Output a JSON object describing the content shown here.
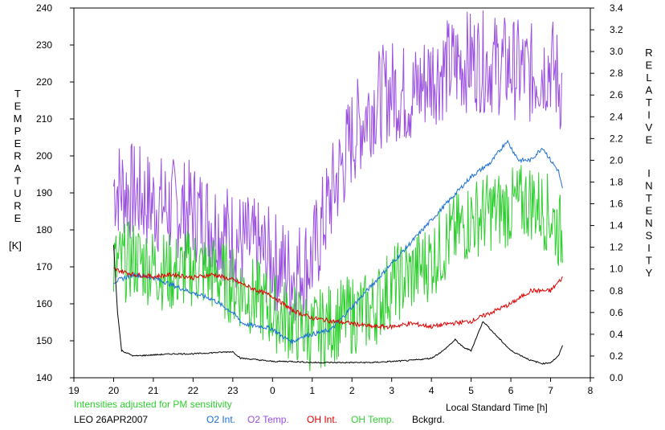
{
  "chart_data": {
    "type": "line",
    "title": "",
    "xlabel": "Local Standard Time [h]",
    "ylabel_left_letters": [
      "T",
      "E",
      "M",
      "P",
      "E",
      "R",
      "A",
      "T",
      "U",
      "R",
      "E"
    ],
    "ylabel_left_unit": "[K]",
    "ylabel_right_word1": [
      "R",
      "E",
      "L",
      "A",
      "T",
      "I",
      "V",
      "E"
    ],
    "ylabel_right_word2": [
      "I",
      "N",
      "T",
      "E",
      "N",
      "S",
      "I",
      "T",
      "Y"
    ],
    "xlim": [
      19,
      8
    ],
    "x_tick_labels": [
      "19",
      "20",
      "21",
      "22",
      "23",
      "0",
      "1",
      "2",
      "3",
      "4",
      "5",
      "6",
      "7",
      "8"
    ],
    "ylim_left": [
      140,
      240
    ],
    "y_left_ticks": [
      140,
      150,
      160,
      170,
      180,
      190,
      200,
      210,
      220,
      230,
      240
    ],
    "ylim_right": [
      0.0,
      3.4
    ],
    "y_right_ticks": [
      "0.0",
      "0.2",
      "0.4",
      "0.6",
      "0.8",
      "1.0",
      "1.2",
      "1.4",
      "1.6",
      "1.8",
      "2.0",
      "2.2",
      "2.4",
      "2.6",
      "2.8",
      "3.0",
      "3.2",
      "3.4"
    ],
    "note": "Intensities adjusted for PM sensitivity",
    "station": "LEO 26APR2007",
    "grid": false,
    "colors": {
      "O2 Int.": "#1a6fd6",
      "O2 Temp.": "#9a4fe0",
      "OH Int.": "#e00000",
      "OH Temp.": "#2fcf2f",
      "Bckgrd.": "#000000",
      "note": "#2fcf2f"
    },
    "series": [
      {
        "name": "O2 Int.",
        "axis": "right",
        "x": [
          20.0,
          20.5,
          21.0,
          21.5,
          22.0,
          22.5,
          23.0,
          23.25,
          23.5,
          23.75,
          0.0,
          0.25,
          0.5,
          0.75,
          1.0,
          1.25,
          1.5,
          1.75,
          2.0,
          2.5,
          3.0,
          3.5,
          4.0,
          4.5,
          5.0,
          5.5,
          5.9,
          6.2,
          6.5,
          6.8,
          7.0,
          7.2,
          7.3
        ],
        "values": [
          0.88,
          0.95,
          0.92,
          0.85,
          0.78,
          0.72,
          0.6,
          0.5,
          0.48,
          0.47,
          0.45,
          0.38,
          0.33,
          0.38,
          0.4,
          0.42,
          0.45,
          0.55,
          0.65,
          0.85,
          1.05,
          1.25,
          1.45,
          1.65,
          1.85,
          1.98,
          2.18,
          2.0,
          2.0,
          2.12,
          2.0,
          1.9,
          1.73
        ]
      },
      {
        "name": "O2 Temp.",
        "axis": "left",
        "x": [
          20.0,
          20.5,
          21.0,
          21.5,
          22.0,
          22.5,
          23.0,
          23.5,
          0.0,
          0.5,
          1.0,
          1.5,
          2.0,
          2.5,
          3.0,
          3.5,
          4.0,
          4.5,
          5.0,
          5.5,
          6.0,
          6.5,
          7.0,
          7.3
        ],
        "values": [
          192,
          190,
          187,
          186,
          185,
          182,
          178,
          175,
          172,
          168,
          172,
          190,
          205,
          214,
          218,
          216,
          222,
          224,
          226,
          225,
          224,
          222,
          225,
          218
        ]
      },
      {
        "name": "OH Int.",
        "axis": "right",
        "x": [
          20.0,
          20.5,
          21.0,
          21.5,
          22.0,
          22.5,
          23.0,
          23.5,
          0.0,
          0.5,
          1.0,
          1.5,
          2.0,
          2.5,
          3.0,
          3.5,
          4.0,
          4.5,
          5.0,
          5.5,
          6.0,
          6.5,
          7.0,
          7.3
        ],
        "values": [
          1.0,
          0.95,
          0.93,
          0.95,
          0.92,
          0.95,
          0.9,
          0.82,
          0.75,
          0.62,
          0.55,
          0.52,
          0.5,
          0.47,
          0.47,
          0.5,
          0.47,
          0.5,
          0.52,
          0.6,
          0.68,
          0.8,
          0.8,
          0.92
        ]
      },
      {
        "name": "OH Temp.",
        "axis": "left",
        "x": [
          20.0,
          20.5,
          21.0,
          21.5,
          22.0,
          22.5,
          23.0,
          23.5,
          0.0,
          0.5,
          1.0,
          1.5,
          2.0,
          2.5,
          3.0,
          3.5,
          4.0,
          4.5,
          5.0,
          5.5,
          6.0,
          6.5,
          7.0,
          7.3
        ],
        "values": [
          170,
          172,
          170,
          168,
          170,
          168,
          165,
          162,
          158,
          155,
          152,
          155,
          157,
          158,
          165,
          168,
          172,
          178,
          183,
          185,
          186,
          188,
          184,
          178
        ]
      },
      {
        "name": "Bckgrd.",
        "axis": "right",
        "x": [
          20.0,
          20.1,
          20.2,
          20.5,
          21.0,
          21.5,
          22.0,
          22.5,
          23.0,
          23.2,
          23.5,
          0.0,
          0.5,
          1.0,
          1.5,
          2.0,
          2.5,
          3.0,
          3.5,
          4.0,
          4.3,
          4.6,
          4.8,
          5.0,
          5.3,
          5.6,
          6.0,
          6.5,
          6.8,
          7.0,
          7.2,
          7.3
        ],
        "values": [
          1.22,
          0.6,
          0.25,
          0.2,
          0.21,
          0.22,
          0.22,
          0.23,
          0.24,
          0.18,
          0.17,
          0.15,
          0.15,
          0.14,
          0.14,
          0.14,
          0.14,
          0.15,
          0.16,
          0.18,
          0.25,
          0.35,
          0.28,
          0.25,
          0.52,
          0.4,
          0.25,
          0.16,
          0.13,
          0.14,
          0.2,
          0.3
        ]
      }
    ]
  }
}
